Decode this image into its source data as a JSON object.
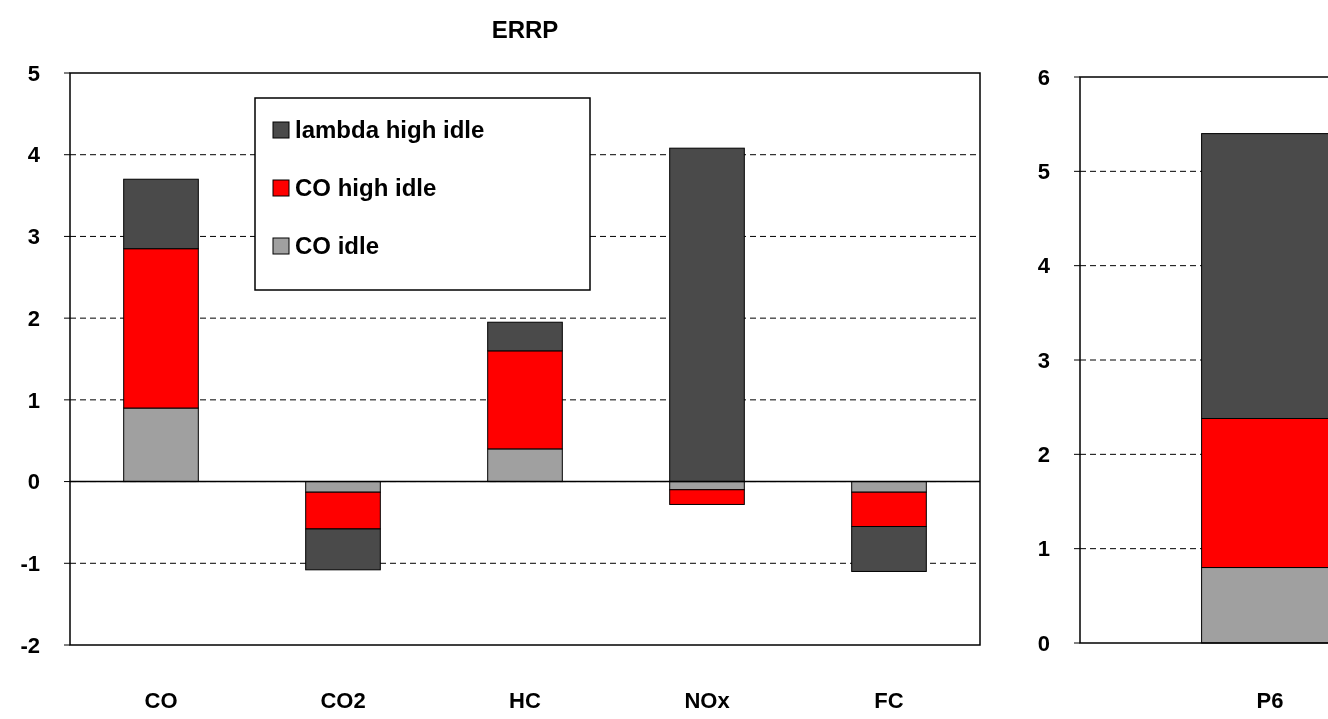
{
  "chart_data": [
    {
      "type": "bar",
      "title": "ERRP",
      "stacked": true,
      "categories": [
        "CO",
        "CO2",
        "HC",
        "NOx",
        "FC"
      ],
      "series": [
        {
          "name": "CO idle",
          "color": "#a0a0a0",
          "values": [
            0.9,
            -0.13,
            0.4,
            -0.1,
            -0.13
          ]
        },
        {
          "name": "CO high idle",
          "color": "#ff0000",
          "values": [
            1.95,
            -0.45,
            1.2,
            -0.18,
            -0.42
          ]
        },
        {
          "name": "lambda high idle",
          "color": "#4a4a4a",
          "values": [
            0.85,
            -0.5,
            0.35,
            4.08,
            -0.55
          ]
        }
      ],
      "ylim": [
        -2,
        5
      ],
      "yticks": [
        -2,
        -1,
        0,
        1,
        2,
        3,
        4,
        5
      ],
      "grid": "y",
      "legend": "top left"
    },
    {
      "type": "bar",
      "stacked": true,
      "categories": [
        "P6"
      ],
      "series": [
        {
          "color": "#a0a0a0",
          "values": [
            0.8
          ]
        },
        {
          "color": "#ff0000",
          "values": [
            1.58
          ]
        },
        {
          "color": "#4a4a4a",
          "values": [
            3.02
          ]
        }
      ],
      "ylim": [
        0,
        6
      ],
      "yticks": [
        0,
        1,
        2,
        3,
        4,
        5,
        6
      ],
      "grid": "y"
    }
  ]
}
